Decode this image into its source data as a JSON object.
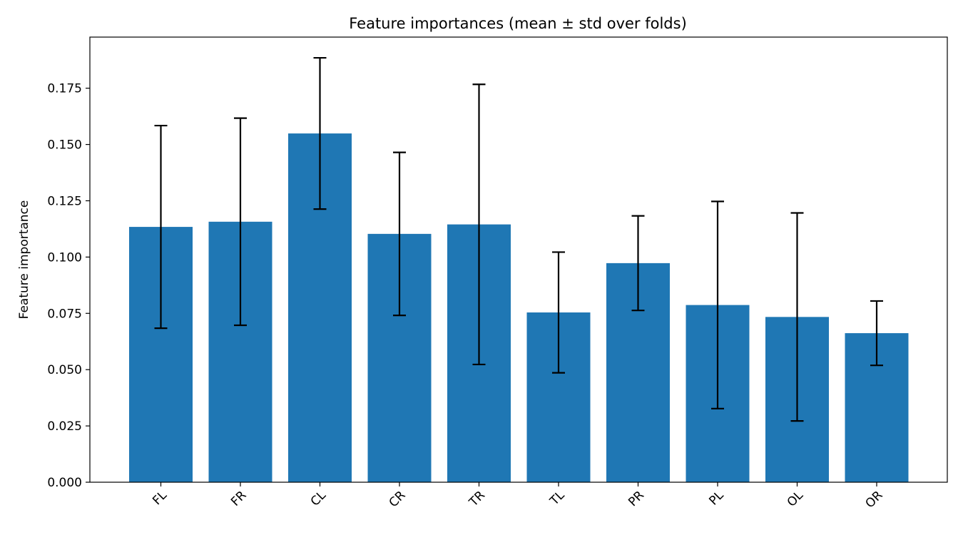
{
  "chart_data": {
    "type": "bar",
    "title": "Feature importances (mean ± std over folds)",
    "xlabel": "",
    "ylabel": "Feature importance",
    "categories": [
      "FL",
      "FR",
      "CL",
      "CR",
      "TR",
      "TL",
      "PR",
      "PL",
      "OL",
      "OR"
    ],
    "values": [
      0.1134,
      0.1157,
      0.1549,
      0.1103,
      0.1145,
      0.0754,
      0.0973,
      0.0787,
      0.0734,
      0.0662
    ],
    "errors": [
      0.045,
      0.046,
      0.0336,
      0.0362,
      0.0622,
      0.0268,
      0.021,
      0.046,
      0.0462,
      0.0143
    ],
    "ylim": [
      0,
      0.1977
    ],
    "yticks": [
      "0.000",
      "0.025",
      "0.050",
      "0.075",
      "0.100",
      "0.125",
      "0.150",
      "0.175"
    ],
    "bar_color": "#1f77b4",
    "error_color": "#000000",
    "grid": false,
    "legend": "none"
  }
}
